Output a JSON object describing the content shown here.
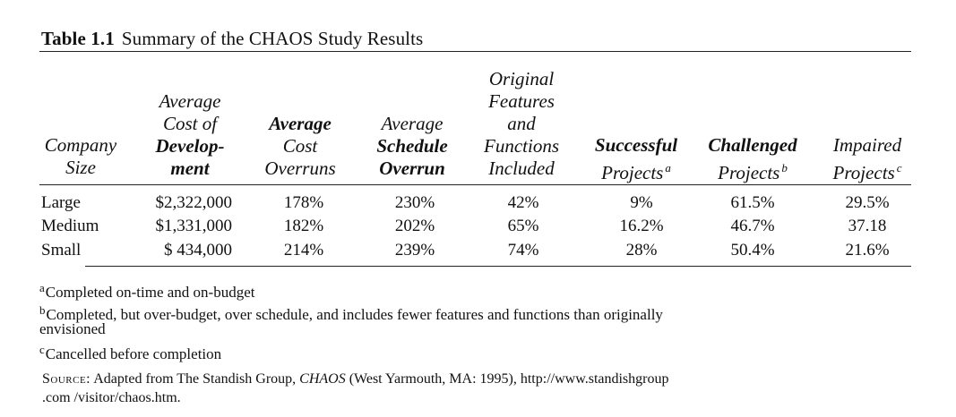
{
  "caption": {
    "number": "Table 1.1",
    "title": "Summary of the CHAOS Study Results"
  },
  "headers": {
    "company": [
      "Company",
      "Size"
    ],
    "cost": [
      "Average",
      "Cost of",
      "Develop-",
      "ment"
    ],
    "overruns": [
      "Average",
      "Cost",
      "Overruns"
    ],
    "schedule": [
      "Average",
      "Schedule",
      "Overrun"
    ],
    "features": [
      "Original",
      "Features",
      "and",
      "Functions",
      "Included"
    ],
    "successful": [
      "Successful",
      "Projects",
      "a"
    ],
    "challenged": [
      "Challenged",
      "Projects",
      "b"
    ],
    "impaired": [
      "Impaired",
      "Projects",
      "c"
    ]
  },
  "rows": [
    {
      "size": "Large",
      "cost": "$2,322,000",
      "overruns": "178%",
      "schedule": "230%",
      "features": "42%",
      "successful": "9%",
      "challenged": "61.5%",
      "impaired": "29.5%"
    },
    {
      "size": "Medium",
      "cost": "$1,331,000",
      "overruns": "182%",
      "schedule": "202%",
      "features": "65%",
      "successful": "16.2%",
      "challenged": "46.7%",
      "impaired": "37.18"
    },
    {
      "size": "Small",
      "cost": "$ 434,000",
      "overruns": "214%",
      "schedule": "239%",
      "features": "74%",
      "successful": "28%",
      "challenged": "50.4%",
      "impaired": "21.6%"
    }
  ],
  "footnotes": {
    "a_mark": "a",
    "a_text": "Completed on-time and on-budget",
    "b_mark": "b",
    "b_text_1": "Completed, but over-budget, over schedule, and includes fewer features and functions than originally",
    "b_text_2": "envisioned",
    "c_mark": "c",
    "c_text": "Cancelled before completion"
  },
  "source": {
    "label": "Source:",
    "text_1": "Adapted from The Standish Group, ",
    "title": "CHAOS",
    "text_2": " (West Yarmouth, MA: 1995), http://www.standishgroup",
    "text_3": ".com /visitor/chaos.htm."
  }
}
